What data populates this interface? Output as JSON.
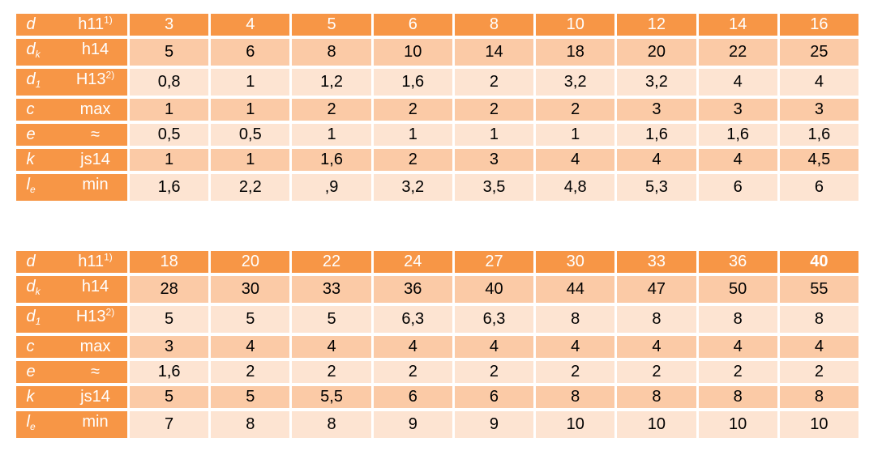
{
  "table1": {
    "header": {
      "sym": "d",
      "sub": "",
      "tol": "h11",
      "sup": "1)",
      "values": [
        "3",
        "4",
        "5",
        "6",
        "8",
        "10",
        "12",
        "14",
        "16"
      ]
    },
    "rows": [
      {
        "sym": "d",
        "sub": "k",
        "tol": "h14",
        "sup": "",
        "values": [
          "5",
          "6",
          "8",
          "10",
          "14",
          "18",
          "20",
          "22",
          "25"
        ]
      },
      {
        "sym": "d",
        "sub": "1",
        "tol": "H13",
        "sup": "2)",
        "values": [
          "0,8",
          "1",
          "1,2",
          "1,6",
          "2",
          "3,2",
          "3,2",
          "4",
          "4"
        ]
      },
      {
        "sym": "c",
        "sub": "",
        "tol": "max",
        "sup": "",
        "values": [
          "1",
          "1",
          "2",
          "2",
          "2",
          "2",
          "3",
          "3",
          "3"
        ]
      },
      {
        "sym": "e",
        "sub": "",
        "tol": "≈",
        "sup": "",
        "values": [
          "0,5",
          "0,5",
          "1",
          "1",
          "1",
          "1",
          "1,6",
          "1,6",
          "1,6"
        ]
      },
      {
        "sym": "k",
        "sub": "",
        "tol": "js14",
        "sup": "",
        "values": [
          "1",
          "1",
          "1,6",
          "2",
          "3",
          "4",
          "4",
          "4",
          "4,5"
        ]
      },
      {
        "sym": "l",
        "sub": "e",
        "tol": "min",
        "sup": "",
        "values": [
          "1,6",
          "2,2",
          ",9",
          "3,2",
          "3,5",
          "4,8",
          "5,3",
          "6",
          "6"
        ]
      }
    ]
  },
  "table2": {
    "header": {
      "sym": "d",
      "sub": "",
      "tol": "h11",
      "sup": "1)",
      "values": [
        "18",
        "20",
        "22",
        "24",
        "27",
        "30",
        "33",
        "36",
        "40"
      ]
    },
    "rows": [
      {
        "sym": "d",
        "sub": "k",
        "tol": "h14",
        "sup": "",
        "values": [
          "28",
          "30",
          "33",
          "36",
          "40",
          "44",
          "47",
          "50",
          "55"
        ]
      },
      {
        "sym": "d",
        "sub": "1",
        "tol": "H13",
        "sup": "2)",
        "values": [
          "5",
          "5",
          "5",
          "6,3",
          "6,3",
          "8",
          "8",
          "8",
          "8"
        ]
      },
      {
        "sym": "c",
        "sub": "",
        "tol": "max",
        "sup": "",
        "values": [
          "3",
          "4",
          "4",
          "4",
          "4",
          "4",
          "4",
          "4",
          "4"
        ]
      },
      {
        "sym": "e",
        "sub": "",
        "tol": "≈",
        "sup": "",
        "values": [
          "1,6",
          "2",
          "2",
          "2",
          "2",
          "2",
          "2",
          "2",
          "2"
        ]
      },
      {
        "sym": "k",
        "sub": "",
        "tol": "js14",
        "sup": "",
        "values": [
          "5",
          "5",
          "5,5",
          "6",
          "6",
          "8",
          "8",
          "8",
          "8"
        ]
      },
      {
        "sym": "l",
        "sub": "e",
        "tol": "min",
        "sup": "",
        "values": [
          "7",
          "8",
          "8",
          "9",
          "9",
          "10",
          "10",
          "10",
          "10"
        ]
      }
    ]
  },
  "colors": {
    "header": "#f79646",
    "row_dark": "#fbcaa6",
    "row_light": "#fde4d2"
  },
  "bold_header_values": [
    "40"
  ]
}
